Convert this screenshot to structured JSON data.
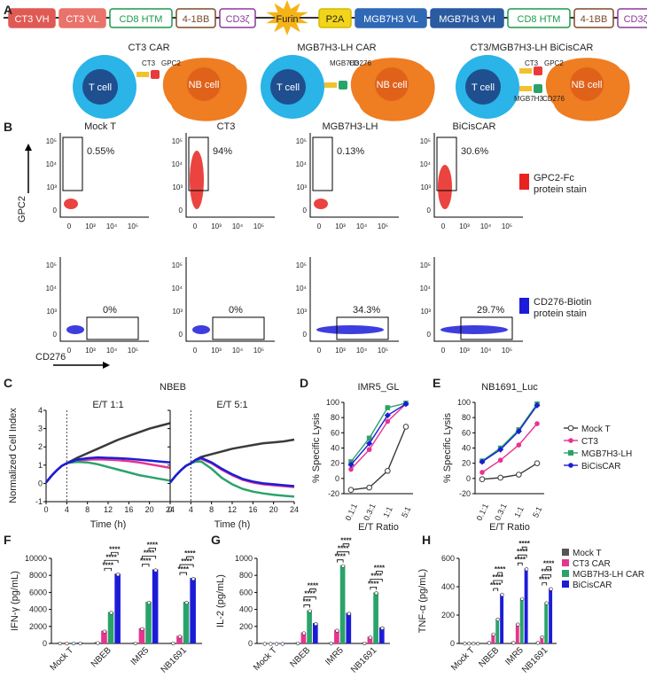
{
  "panel_letters": [
    "A",
    "B",
    "C",
    "D",
    "E",
    "F",
    "G",
    "H"
  ],
  "panel_a": {
    "segments": [
      {
        "label": "CT3 VH",
        "fill": "#e05a55",
        "text": "#ffffff",
        "stroke": "#e05a55"
      },
      {
        "label": "CT3 VL",
        "fill": "#e9736a",
        "text": "#ffffff",
        "stroke": "#e9736a"
      },
      {
        "label": "CD8 HTM",
        "fill": "#ffffff",
        "text": "#1b9a4a",
        "stroke": "#1b9a4a"
      },
      {
        "label": "4-1BB",
        "fill": "#ffffff",
        "text": "#7b4a2a",
        "stroke": "#7b4a2a"
      },
      {
        "label": "CD3ζ",
        "fill": "#ffffff",
        "text": "#8a3a9a",
        "stroke": "#8a3a9a"
      },
      {
        "label": "Furin",
        "fill": "#f5b318",
        "text": "#222222",
        "stroke": "#f5b318"
      },
      {
        "label": "P2A",
        "fill": "#f2d51a",
        "text": "#222222",
        "stroke": "#d6b800"
      },
      {
        "label": "MGB7H3 VL",
        "fill": "#2f68b5",
        "text": "#ffffff",
        "stroke": "#2f68b5"
      },
      {
        "label": "MGB7H3 VH",
        "fill": "#2a5aa0",
        "text": "#ffffff",
        "stroke": "#2a5aa0"
      },
      {
        "label": "CD8 HTM",
        "fill": "#ffffff",
        "text": "#1b9a4a",
        "stroke": "#1b9a4a"
      },
      {
        "label": "4-1BB",
        "fill": "#ffffff",
        "text": "#7b4a2a",
        "stroke": "#7b4a2a"
      },
      {
        "label": "CD3ζ",
        "fill": "#ffffff",
        "text": "#8a3a9a",
        "stroke": "#8a3a9a"
      }
    ],
    "schematics": [
      {
        "title": "CT3 CAR",
        "t_cell": "T cell",
        "nb_cell": "NB cell",
        "labels": [
          "CT3",
          "GPC2"
        ]
      },
      {
        "title": "MGB7H3-LH CAR",
        "t_cell": "T cell",
        "nb_cell": "NB cell",
        "labels": [
          "MGB7H3",
          "CD276"
        ]
      },
      {
        "title": "CT3/MGB7H3-LH BiCisCAR",
        "t_cell": "T cell",
        "nb_cell": "NB cell",
        "labels": [
          "CT3",
          "GPC2",
          "MGB7H3",
          "CD276"
        ]
      }
    ]
  },
  "panel_b": {
    "columns": [
      "Mock T",
      "CT3",
      "MGB7H3-LH",
      "BiCisCAR"
    ],
    "row1_pct": [
      "0.55%",
      "94%",
      "0.13%",
      "30.6%"
    ],
    "row2_pct": [
      "0%",
      "0%",
      "34.3%",
      "29.7%"
    ],
    "y_ticks": [
      "10⁵",
      "10⁴",
      "10³",
      "0"
    ],
    "x_ticks": [
      "0",
      "10³",
      "10⁴",
      "10⁵"
    ],
    "y_label": "GPC2",
    "x_label": "CD276",
    "legend": [
      {
        "lines": [
          "GPC2-Fc",
          "protein stain"
        ],
        "color": "#e8231f"
      },
      {
        "lines": [
          "CD276-Biotin",
          "protein stain"
        ],
        "color": "#1c1cd8"
      }
    ]
  },
  "chart_data": [
    {
      "id": "C",
      "type": "line",
      "title": "NBEB",
      "subtitles": [
        "E/T 1:1",
        "E/T 5:1"
      ],
      "ylabel": "Normalized Cell Index",
      "xlabel": "Time (h)",
      "xticks": [
        0,
        4,
        8,
        12,
        16,
        20,
        24
      ],
      "yticks": [
        -1,
        0,
        1,
        2,
        3,
        4
      ],
      "xlim": [
        0,
        24
      ],
      "ylim": [
        -1,
        4
      ],
      "addition_time": 4,
      "x": [
        0,
        1,
        2,
        3,
        4,
        5,
        6,
        8,
        10,
        12,
        14,
        16,
        18,
        20,
        22,
        24
      ],
      "panels": [
        {
          "subtitle": "E/T 1:1",
          "series": [
            {
              "name": "Mock T",
              "color": "#3a3a3a",
              "values": [
                0.05,
                0.4,
                0.7,
                0.95,
                1.1,
                1.25,
                1.4,
                1.65,
                1.9,
                2.15,
                2.4,
                2.6,
                2.8,
                3.0,
                3.15,
                3.3
              ]
            },
            {
              "name": "CT3",
              "color": "#e8338f",
              "values": [
                0.05,
                0.4,
                0.7,
                0.95,
                1.1,
                1.18,
                1.25,
                1.3,
                1.32,
                1.3,
                1.27,
                1.22,
                1.15,
                1.05,
                0.95,
                0.85
              ]
            },
            {
              "name": "MGB7H3-LH",
              "color": "#2aa36a",
              "values": [
                0.05,
                0.4,
                0.7,
                0.95,
                1.1,
                1.15,
                1.18,
                1.15,
                1.05,
                0.9,
                0.75,
                0.6,
                0.45,
                0.35,
                0.25,
                0.15
              ]
            },
            {
              "name": "BiCisCAR",
              "color": "#1c1cd8",
              "values": [
                0.05,
                0.4,
                0.7,
                0.95,
                1.1,
                1.2,
                1.3,
                1.38,
                1.42,
                1.4,
                1.38,
                1.35,
                1.3,
                1.25,
                1.2,
                1.15
              ]
            }
          ]
        },
        {
          "subtitle": "E/T 5:1",
          "series": [
            {
              "name": "Mock T",
              "color": "#3a3a3a",
              "values": [
                0.05,
                0.4,
                0.7,
                0.95,
                1.1,
                1.3,
                1.45,
                1.6,
                1.75,
                1.9,
                2.0,
                2.1,
                2.2,
                2.25,
                2.3,
                2.4
              ]
            },
            {
              "name": "CT3",
              "color": "#e8338f",
              "values": [
                0.05,
                0.4,
                0.7,
                0.95,
                1.1,
                1.3,
                1.35,
                1.1,
                0.75,
                0.45,
                0.2,
                0.05,
                -0.05,
                -0.1,
                -0.15,
                -0.2
              ]
            },
            {
              "name": "MGB7H3-LH",
              "color": "#2aa36a",
              "values": [
                0.05,
                0.4,
                0.7,
                0.95,
                1.1,
                1.2,
                1.2,
                0.8,
                0.3,
                -0.05,
                -0.3,
                -0.45,
                -0.55,
                -0.62,
                -0.68,
                -0.72
              ]
            },
            {
              "name": "BiCisCAR",
              "color": "#1c1cd8",
              "values": [
                0.05,
                0.4,
                0.7,
                0.95,
                1.1,
                1.3,
                1.4,
                1.15,
                0.8,
                0.5,
                0.25,
                0.1,
                0.0,
                -0.05,
                -0.1,
                -0.15
              ]
            }
          ]
        }
      ]
    },
    {
      "id": "D",
      "type": "line",
      "title": "IMR5_GL",
      "ylabel": "% Specific Lysis",
      "xlabel": "E/T Ratio",
      "categories": [
        "0.1:1",
        "0.3:1",
        "1:1",
        "5:1"
      ],
      "yticks": [
        -20,
        0,
        20,
        40,
        60,
        80,
        100
      ],
      "ylim": [
        -20,
        100
      ],
      "series": [
        {
          "name": "Mock T",
          "color": "#3a3a3a",
          "values": [
            -15,
            -12,
            10,
            68
          ]
        },
        {
          "name": "CT3",
          "color": "#e8338f",
          "values": [
            12,
            38,
            75,
            98
          ]
        },
        {
          "name": "MGB7H3-LH",
          "color": "#2aa36a",
          "values": [
            22,
            53,
            93,
            99
          ]
        },
        {
          "name": "BiCisCAR",
          "color": "#1c1cd8",
          "values": [
            18,
            46,
            83,
            98
          ]
        }
      ]
    },
    {
      "id": "E",
      "type": "line",
      "title": "NB1691_Luc",
      "ylabel": "% Specific Lysis",
      "xlabel": "E/T Ratio",
      "categories": [
        "0.1:1",
        "0.3:1",
        "1:1",
        "5:1"
      ],
      "yticks": [
        -20,
        0,
        20,
        40,
        60,
        80,
        100
      ],
      "ylim": [
        -20,
        100
      ],
      "legend": [
        "Mock T",
        "CT3",
        "MGB7H3-LH",
        "BiCisCAR"
      ],
      "series": [
        {
          "name": "Mock T",
          "color": "#3a3a3a",
          "values": [
            -1,
            1,
            5,
            20
          ]
        },
        {
          "name": "CT3",
          "color": "#e8338f",
          "values": [
            8,
            24,
            44,
            72
          ]
        },
        {
          "name": "MGB7H3-LH",
          "color": "#2aa36a",
          "values": [
            23,
            40,
            64,
            98
          ]
        },
        {
          "name": "BiCisCAR",
          "color": "#1c1cd8",
          "values": [
            22,
            38,
            62,
            96
          ]
        }
      ]
    },
    {
      "id": "F",
      "type": "bar",
      "ylabel": "IFN-γ (pg/mL)",
      "categories": [
        "Mock T",
        "NBEB",
        "IMR5",
        "NB1691"
      ],
      "yticks": [
        0,
        2000,
        4000,
        6000,
        8000,
        10000
      ],
      "ylim": [
        0,
        10000
      ],
      "series": [
        {
          "name": "Mock T",
          "color": "#555555",
          "values": [
            100,
            150,
            100,
            100
          ]
        },
        {
          "name": "CT3 CAR",
          "color": "#e8338f",
          "values": [
            100,
            1500,
            1800,
            900
          ]
        },
        {
          "name": "MGB7H3-LH CAR",
          "color": "#2aa36a",
          "values": [
            100,
            3700,
            4900,
            4900
          ]
        },
        {
          "name": "BiCisCAR",
          "color": "#1c1cd8",
          "values": [
            100,
            8200,
            8700,
            7700
          ]
        }
      ],
      "significance": [
        "****",
        "****",
        "****",
        "****",
        "****",
        "****",
        "****",
        "****",
        "****"
      ]
    },
    {
      "id": "G",
      "type": "bar",
      "ylabel": "IL-2 (pg/mL)",
      "categories": [
        "Mock T",
        "NBEB",
        "IMR5",
        "NB1691"
      ],
      "yticks": [
        0,
        200,
        400,
        600,
        800,
        1000
      ],
      "ylim": [
        0,
        1000
      ],
      "series": [
        {
          "name": "Mock T",
          "color": "#555555",
          "values": [
            5,
            10,
            10,
            10
          ]
        },
        {
          "name": "CT3 CAR",
          "color": "#e8338f",
          "values": [
            5,
            130,
            160,
            80
          ]
        },
        {
          "name": "MGB7H3-LH CAR",
          "color": "#2aa36a",
          "values": [
            5,
            390,
            920,
            600
          ]
        },
        {
          "name": "BiCisCAR",
          "color": "#1c1cd8",
          "values": [
            5,
            240,
            360,
            190
          ]
        }
      ],
      "significance": [
        "***",
        "****",
        "****",
        "****",
        "****",
        "****",
        "****",
        "****",
        "****"
      ]
    },
    {
      "id": "H",
      "type": "bar",
      "ylabel": "TNF-α (pg/mL)",
      "categories": [
        "Mock T",
        "NBEB",
        "IMR5",
        "NB1691"
      ],
      "yticks": [
        0,
        200,
        400,
        600
      ],
      "ylim": [
        0,
        600
      ],
      "legend": [
        "Mock T",
        "CT3 CAR",
        "MGB7H3-LH CAR",
        "BiCisCAR"
      ],
      "series": [
        {
          "name": "Mock T",
          "color": "#555555",
          "values": [
            5,
            10,
            10,
            10
          ]
        },
        {
          "name": "CT3 CAR",
          "color": "#e8338f",
          "values": [
            5,
            70,
            140,
            50
          ]
        },
        {
          "name": "MGB7H3-LH CAR",
          "color": "#2aa36a",
          "values": [
            5,
            175,
            320,
            290
          ]
        },
        {
          "name": "BiCisCAR",
          "color": "#1c1cd8",
          "values": [
            5,
            350,
            530,
            390
          ]
        }
      ],
      "significance": [
        "****",
        "****",
        "****",
        "****",
        "****",
        "****",
        "****",
        "****",
        "****"
      ]
    }
  ]
}
